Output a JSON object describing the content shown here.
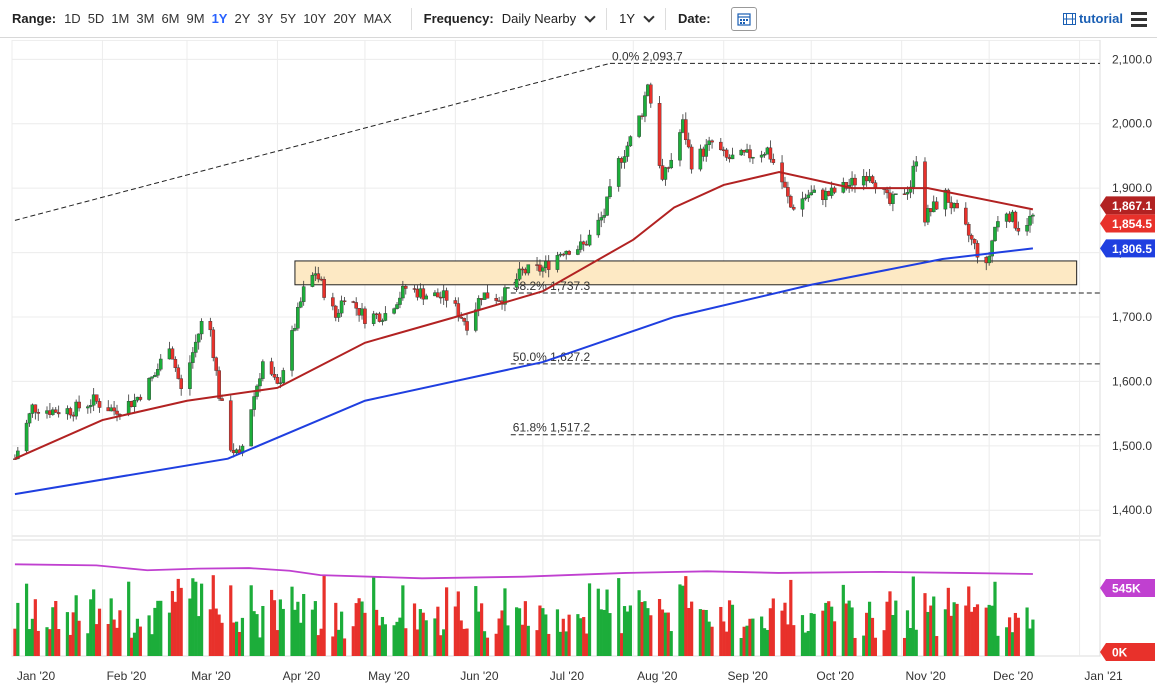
{
  "toolbar": {
    "range_label": "Range:",
    "ranges": [
      "1D",
      "5D",
      "1M",
      "3M",
      "6M",
      "9M",
      "1Y",
      "2Y",
      "3Y",
      "5Y",
      "10Y",
      "20Y",
      "MAX"
    ],
    "active_range": "1Y",
    "frequency_label": "Frequency:",
    "frequency_value": "Daily Nearby",
    "period_value": "1Y",
    "date_label": "Date:",
    "tutorial_label": "tutorial"
  },
  "colors": {
    "up": "#1cad3a",
    "down": "#e8312b",
    "ma_short": "#b22222",
    "ma_long": "#1f3fe0",
    "volume_ma": "#c040d0",
    "zone_fill": "#fde9c4"
  },
  "chart_data": {
    "type": "candlestick",
    "y_axis": {
      "ticks": [
        "2,100.0",
        "2,000.0",
        "1,900.0",
        "1,800.0",
        "1,700.0",
        "1,600.0",
        "1,500.0",
        "1,400.0"
      ],
      "ylim": [
        1360,
        2130
      ]
    },
    "x_axis": {
      "ticks": [
        "Jan '20",
        "Feb '20",
        "Mar '20",
        "Apr '20",
        "May '20",
        "Jun '20",
        "Jul '20",
        "Aug '20",
        "Sep '20",
        "Oct '20",
        "Nov '20",
        "Dec '20",
        "Jan '21"
      ]
    },
    "price_series": [
      [
        "2020-01-02",
        1480
      ],
      [
        "2020-01-08",
        1560
      ],
      [
        "2020-01-15",
        1555
      ],
      [
        "2020-01-22",
        1556
      ],
      [
        "2020-01-29",
        1570
      ],
      [
        "2020-02-05",
        1555
      ],
      [
        "2020-02-12",
        1570
      ],
      [
        "2020-02-19",
        1610
      ],
      [
        "2020-02-24",
        1660
      ],
      [
        "2020-02-28",
        1585
      ],
      [
        "2020-03-06",
        1690
      ],
      [
        "2020-03-09",
        1680
      ],
      [
        "2020-03-12",
        1580
      ],
      [
        "2020-03-16",
        1500
      ],
      [
        "2020-03-19",
        1480
      ],
      [
        "2020-03-23",
        1560
      ],
      [
        "2020-03-27",
        1630
      ],
      [
        "2020-04-01",
        1590
      ],
      [
        "2020-04-06",
        1670
      ],
      [
        "2020-04-10",
        1740
      ],
      [
        "2020-04-14",
        1770
      ],
      [
        "2020-04-21",
        1700
      ],
      [
        "2020-04-24",
        1735
      ],
      [
        "2020-05-01",
        1700
      ],
      [
        "2020-05-08",
        1705
      ],
      [
        "2020-05-15",
        1745
      ],
      [
        "2020-05-22",
        1735
      ],
      [
        "2020-05-29",
        1730
      ],
      [
        "2020-06-05",
        1690
      ],
      [
        "2020-06-10",
        1735
      ],
      [
        "2020-06-17",
        1730
      ],
      [
        "2020-06-24",
        1770
      ],
      [
        "2020-07-01",
        1775
      ],
      [
        "2020-07-08",
        1805
      ],
      [
        "2020-07-15",
        1810
      ],
      [
        "2020-07-22",
        1860
      ],
      [
        "2020-07-27",
        1940
      ],
      [
        "2020-07-31",
        1975
      ],
      [
        "2020-08-04",
        2020
      ],
      [
        "2020-08-06",
        2065
      ],
      [
        "2020-08-11",
        1910
      ],
      [
        "2020-08-14",
        1945
      ],
      [
        "2020-08-18",
        2000
      ],
      [
        "2020-08-21",
        1940
      ],
      [
        "2020-08-28",
        1970
      ],
      [
        "2020-09-02",
        1945
      ],
      [
        "2020-09-09",
        1950
      ],
      [
        "2020-09-16",
        1960
      ],
      [
        "2020-09-21",
        1910
      ],
      [
        "2020-09-24",
        1870
      ],
      [
        "2020-09-30",
        1890
      ],
      [
        "2020-10-07",
        1890
      ],
      [
        "2020-10-14",
        1905
      ],
      [
        "2020-10-21",
        1925
      ],
      [
        "2020-10-28",
        1875
      ],
      [
        "2020-11-04",
        1905
      ],
      [
        "2020-11-06",
        1950
      ],
      [
        "2020-11-09",
        1855
      ],
      [
        "2020-11-16",
        1890
      ],
      [
        "2020-11-23",
        1835
      ],
      [
        "2020-11-30",
        1775
      ],
      [
        "2020-12-03",
        1840
      ],
      [
        "2020-12-07",
        1865
      ],
      [
        "2020-12-11",
        1840
      ],
      [
        "2020-12-16",
        1855
      ]
    ],
    "ma_short": [
      [
        "2020-01-02",
        1480
      ],
      [
        "2020-02-01",
        1540
      ],
      [
        "2020-03-01",
        1570
      ],
      [
        "2020-04-01",
        1590
      ],
      [
        "2020-05-01",
        1660
      ],
      [
        "2020-06-01",
        1700
      ],
      [
        "2020-07-01",
        1740
      ],
      [
        "2020-08-01",
        1820
      ],
      [
        "2020-08-15",
        1870
      ],
      [
        "2020-09-01",
        1905
      ],
      [
        "2020-09-20",
        1925
      ],
      [
        "2020-10-15",
        1900
      ],
      [
        "2020-11-10",
        1900
      ],
      [
        "2020-12-16",
        1867.1
      ]
    ],
    "ma_long": [
      [
        "2020-01-02",
        1425
      ],
      [
        "2020-03-15",
        1480
      ],
      [
        "2020-05-01",
        1570
      ],
      [
        "2020-07-01",
        1630
      ],
      [
        "2020-08-15",
        1700
      ],
      [
        "2020-10-01",
        1750
      ],
      [
        "2020-11-15",
        1790
      ],
      [
        "2020-12-16",
        1806.5
      ]
    ],
    "volume_ylim": [
      0,
      1000
    ],
    "volume_ma_series": [
      [
        0,
        850
      ],
      [
        0.08,
        840
      ],
      [
        0.13,
        795
      ],
      [
        0.18,
        810
      ],
      [
        0.23,
        815
      ],
      [
        0.27,
        790
      ],
      [
        0.3,
        750
      ],
      [
        0.4,
        720
      ],
      [
        0.5,
        735
      ],
      [
        0.6,
        770
      ],
      [
        0.68,
        785
      ],
      [
        0.75,
        770
      ],
      [
        0.85,
        780
      ],
      [
        0.93,
        770
      ],
      [
        1,
        760
      ]
    ],
    "last_values": {
      "ma_short": "1,867.1",
      "price": "1,854.5",
      "ma_long": "1,806.5",
      "volume_ma": "545K",
      "volume_zero": "0K"
    },
    "fibonacci": [
      {
        "label": "0.0% 2,093.7",
        "value": 2093.7
      },
      {
        "label": "38.2% 1,737.3",
        "value": 1737.3
      },
      {
        "label": "50.0% 1,627.2",
        "value": 1627.2
      },
      {
        "label": "61.8% 1,517.2",
        "value": 1517.2
      }
    ],
    "trendline": {
      "from": [
        "2020-01-02",
        1850
      ],
      "to": [
        "2020-07-24",
        2093.7
      ]
    },
    "zone": {
      "from": "2020-04-07",
      "to": "2020-12-31",
      "low": 1750,
      "high": 1787
    }
  }
}
